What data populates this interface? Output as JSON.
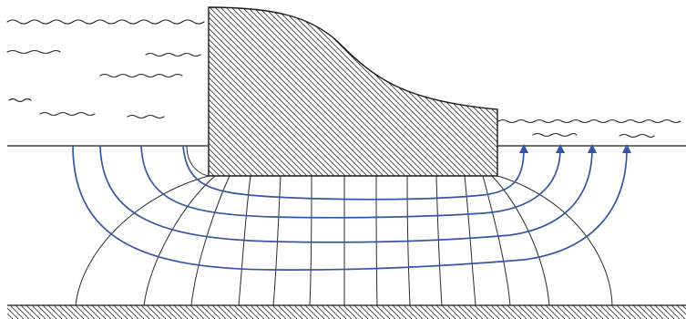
{
  "diagram": {
    "type": "flow-net-under-dam",
    "labels": [],
    "colors": {
      "flow_line": "#3355aa",
      "equipotential_line": "#2a2a2a",
      "hatch": "#333333",
      "background": "#ffffff"
    },
    "elements": {
      "dam": "concrete-gravity-dam",
      "upstream_water": "headwater",
      "downstream_water": "tailwater",
      "foundation": "permeable-soil-layer",
      "base": "impervious-boundary"
    },
    "flow_line_count": 4,
    "equipotential_line_count": 15
  }
}
